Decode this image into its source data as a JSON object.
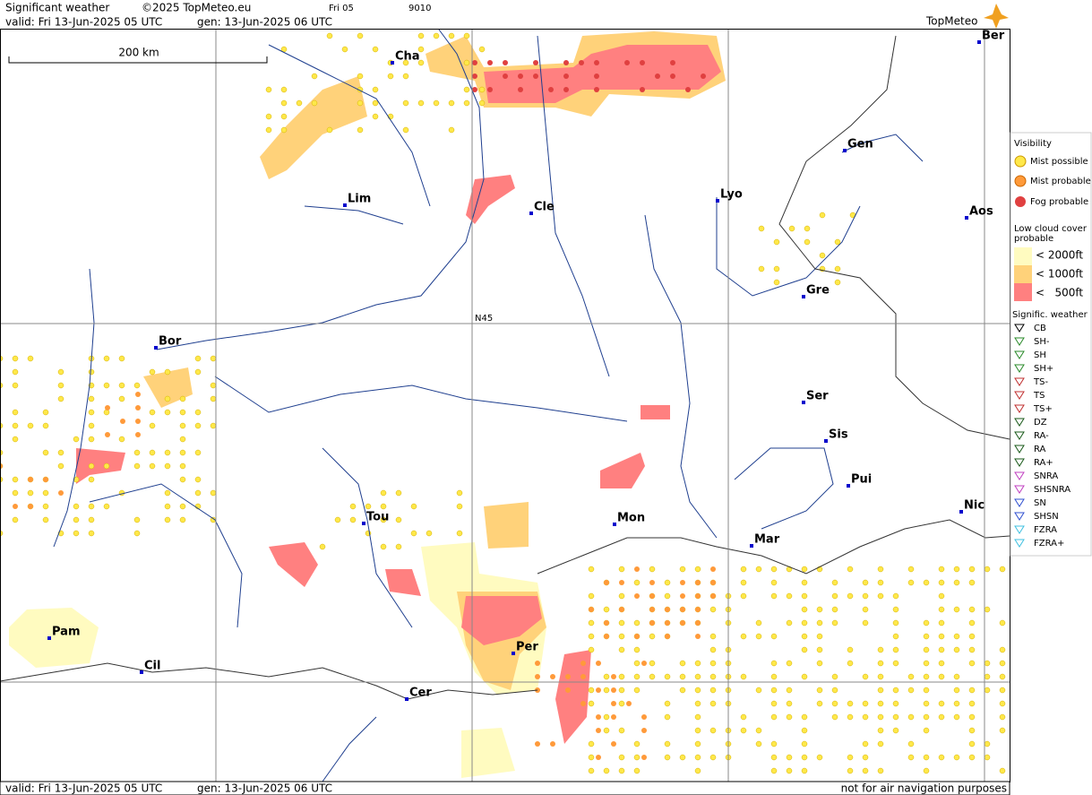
{
  "header": {
    "title": "Significant weather",
    "copyright": "©2025 TopMeteo.eu",
    "step": "Fri 05",
    "code": "9010",
    "valid": "valid:  Fri  13-Jun-2025  05 UTC",
    "gen": "gen: 13-Jun-2025 06 UTC",
    "logo": "TopMeteo"
  },
  "map": {
    "scale": "200 km",
    "latitude_label": "N45",
    "cities": [
      "Cha",
      "Ber",
      "Gen",
      "Lim",
      "Cle",
      "Lyo",
      "Aos",
      "Gre",
      "Bor",
      "Ser",
      "Sis",
      "Pui",
      "Nic",
      "Tou",
      "Mon",
      "Mar",
      "Pam",
      "Cil",
      "Per",
      "Cer"
    ]
  },
  "footer": {
    "valid": "valid:  Fri  13-Jun-2025  05 UTC",
    "gen": "gen: 13-Jun-2025 06 UTC",
    "disclaimer": "not for air navigation purposes"
  },
  "legend": {
    "visibility": {
      "title": "Visibility",
      "items": [
        "Mist possible",
        "Mist probable",
        "Fog probable"
      ]
    },
    "low_cloud": {
      "title_line1": "Low cloud cover",
      "title_line2": "probable",
      "items": [
        "< 2000ft",
        "< 1000ft",
        "<   500ft"
      ]
    },
    "weather": {
      "title": "Signific. weather",
      "items": [
        "CB",
        "SH-",
        "SH",
        "SH+",
        "TS-",
        "TS",
        "TS+",
        "DZ",
        "RA-",
        "RA",
        "RA+",
        "SNRA",
        "SHSNRA",
        "SN",
        "SHSN",
        "FZRA",
        "FZRA+"
      ]
    }
  }
}
